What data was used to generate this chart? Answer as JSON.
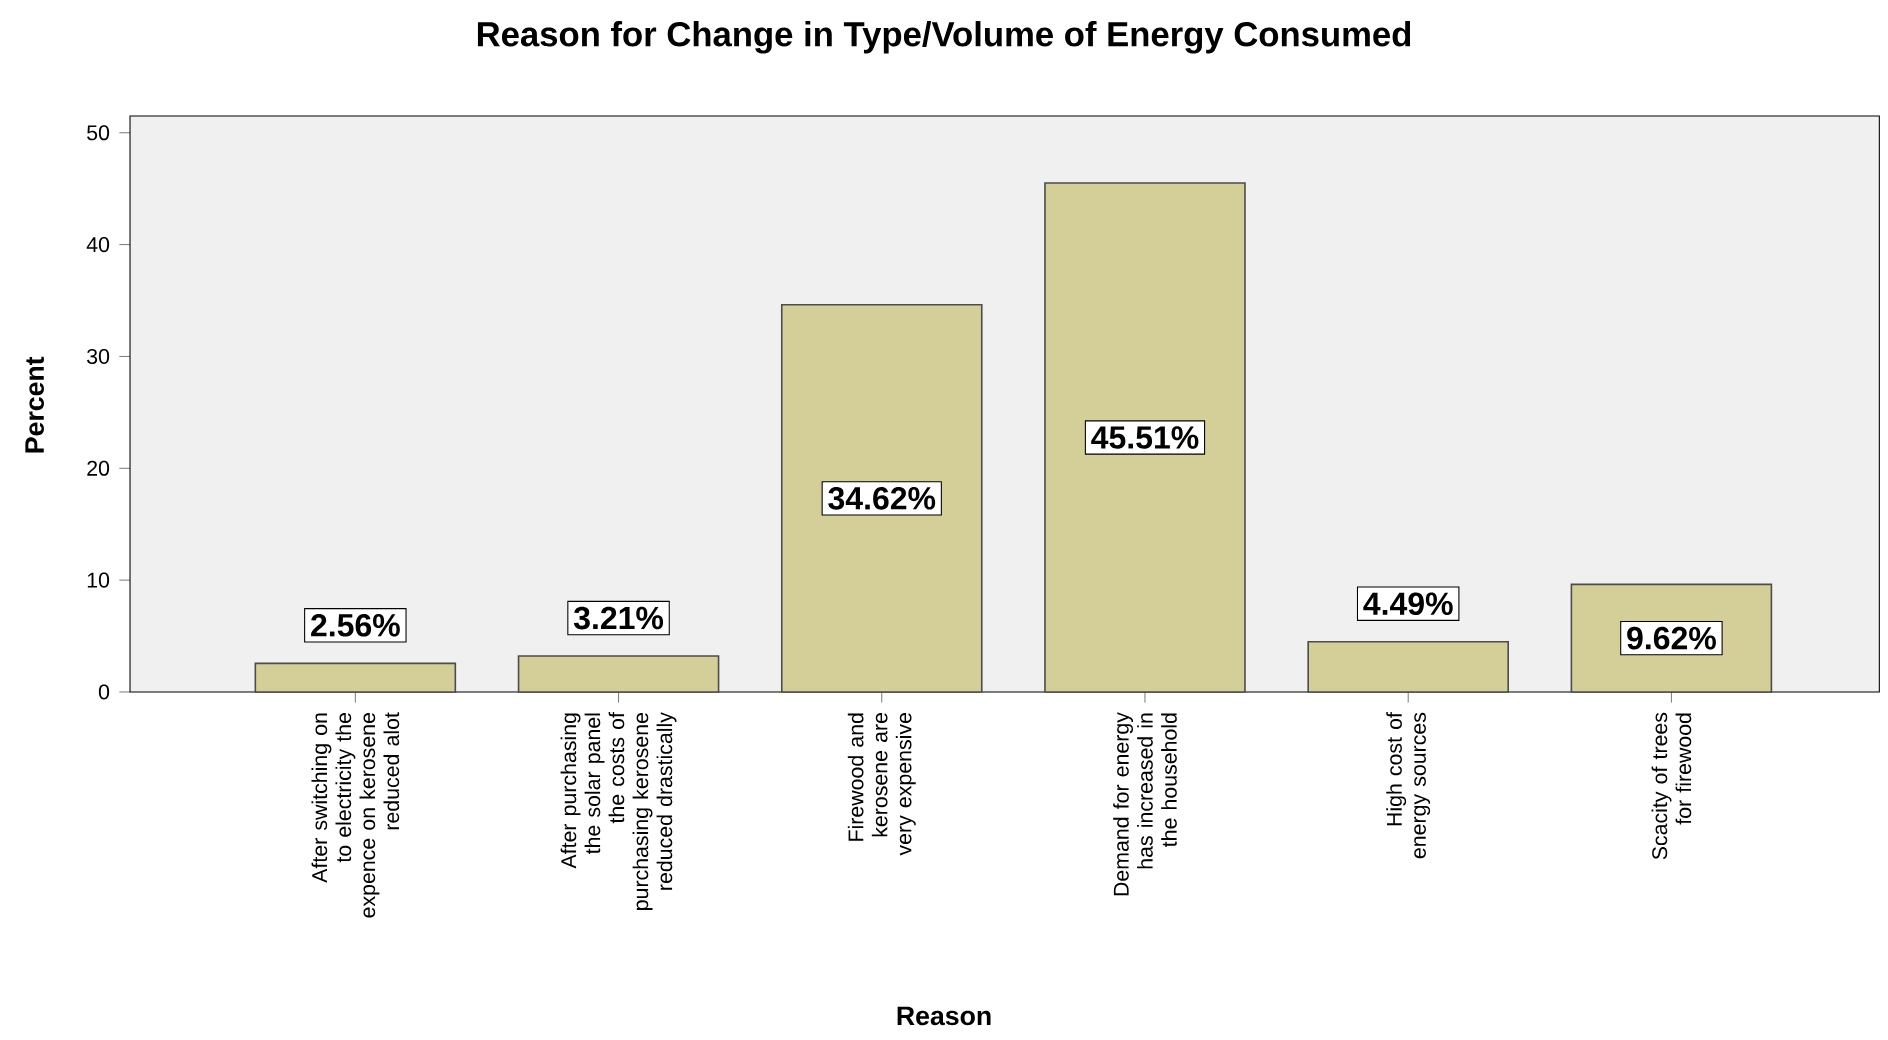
{
  "chart_data": {
    "type": "bar",
    "title": "Reason for Change in Type/Volume of Energy Consumed",
    "xlabel": "Reason",
    "ylabel": "Percent",
    "categories": [
      "After switching on to electricity the expence on kerosene reduced alot",
      "After purchasing the solar panel the costs of purchasing kerosene reduced drastically",
      "Firewood and kerosene are very expensive",
      "Demand for energy has increased in the household",
      "High cost of energy sources",
      "Scacity of trees for firewood"
    ],
    "values": [
      2.56,
      3.21,
      34.62,
      45.51,
      4.49,
      9.62
    ],
    "value_labels": [
      "2.56%",
      "3.21%",
      "34.62%",
      "45.51%",
      "4.49%",
      "9.62%"
    ],
    "color": "#d4cf98",
    "ylim": [
      0,
      51.5
    ],
    "yticks": [
      0,
      10,
      20,
      30,
      40,
      50
    ],
    "grid": false
  }
}
